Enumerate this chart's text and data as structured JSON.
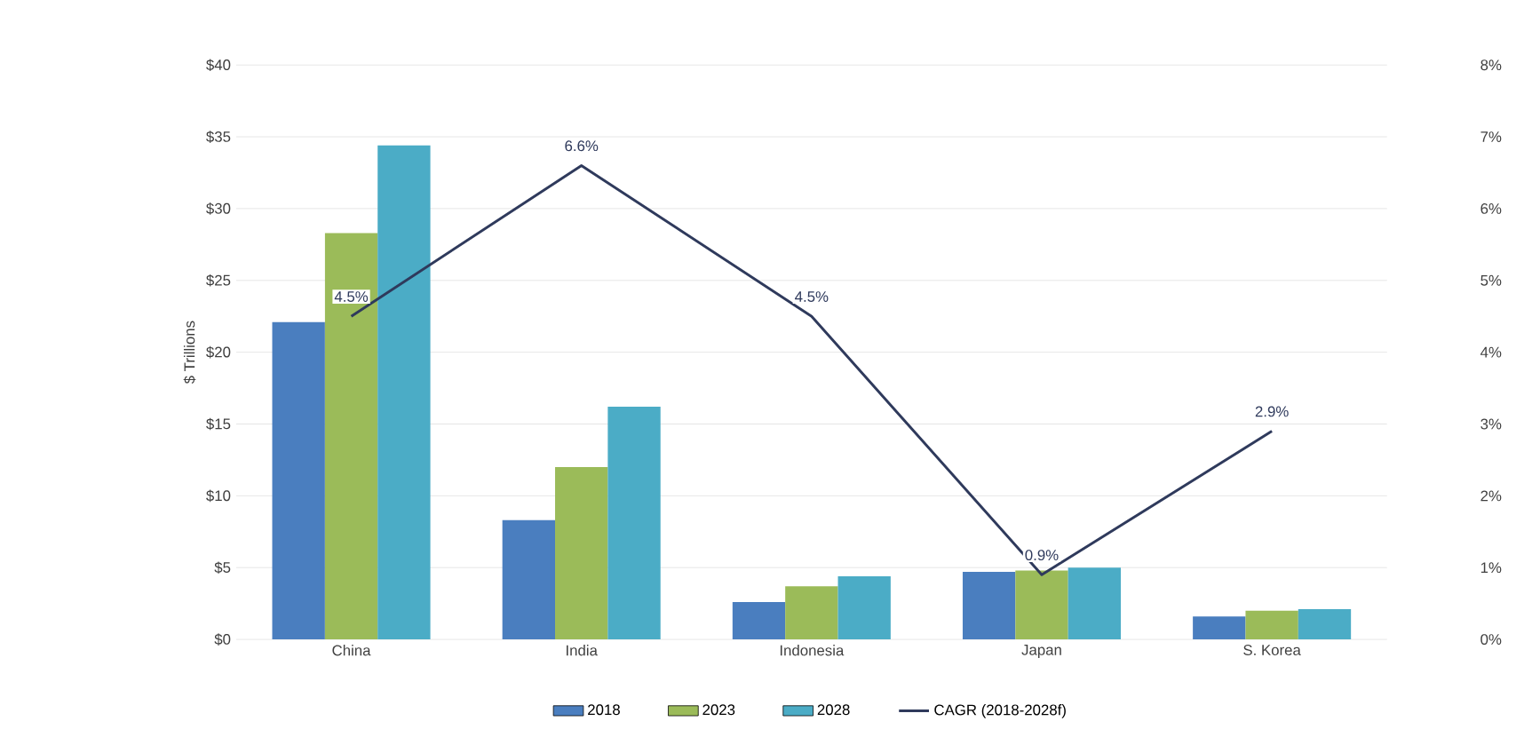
{
  "chart_data": {
    "type": "bar",
    "ylabel": "$ Trillions",
    "categories": [
      "China",
      "India",
      "Indonesia",
      "Japan",
      "S. Korea"
    ],
    "series": [
      {
        "name": "2018",
        "color": "#4a7ebf",
        "values": [
          22.1,
          8.3,
          2.6,
          4.7,
          1.6
        ]
      },
      {
        "name": "2023",
        "color": "#9bbb59",
        "values": [
          28.3,
          12.0,
          3.7,
          4.8,
          2.0
        ]
      },
      {
        "name": "2028",
        "color": "#4bacc6",
        "values": [
          34.4,
          16.2,
          4.4,
          5.0,
          2.1
        ]
      },
      {
        "name": "CAGR (2018-2028f)",
        "type": "line",
        "axis": "y2",
        "color": "#2f3a5c",
        "values": [
          4.5,
          6.6,
          4.5,
          0.9,
          2.9
        ],
        "value_labels": [
          "4.5%",
          "6.6%",
          "4.5%",
          "0.9%",
          "2.9%"
        ]
      }
    ],
    "ylim": [
      0,
      40
    ],
    "yticks": [
      {
        "value": 0,
        "label": "$0"
      },
      {
        "value": 5,
        "label": "$5"
      },
      {
        "value": 10,
        "label": "$10"
      },
      {
        "value": 15,
        "label": "$15"
      },
      {
        "value": 20,
        "label": "$20"
      },
      {
        "value": 25,
        "label": "$25"
      },
      {
        "value": 30,
        "label": "$30"
      },
      {
        "value": 35,
        "label": "$35"
      },
      {
        "value": 40,
        "label": "$40"
      }
    ],
    "y2lim": [
      0,
      8
    ],
    "y2ticks": [
      {
        "value": 0,
        "label": "0%"
      },
      {
        "value": 1,
        "label": "1%"
      },
      {
        "value": 2,
        "label": "2%"
      },
      {
        "value": 3,
        "label": "3%"
      },
      {
        "value": 4,
        "label": "4%"
      },
      {
        "value": 5,
        "label": "5%"
      },
      {
        "value": 6,
        "label": "6%"
      },
      {
        "value": 7,
        "label": "7%"
      },
      {
        "value": 8,
        "label": "8%"
      }
    ],
    "grid": "y",
    "legend": "bottom"
  }
}
